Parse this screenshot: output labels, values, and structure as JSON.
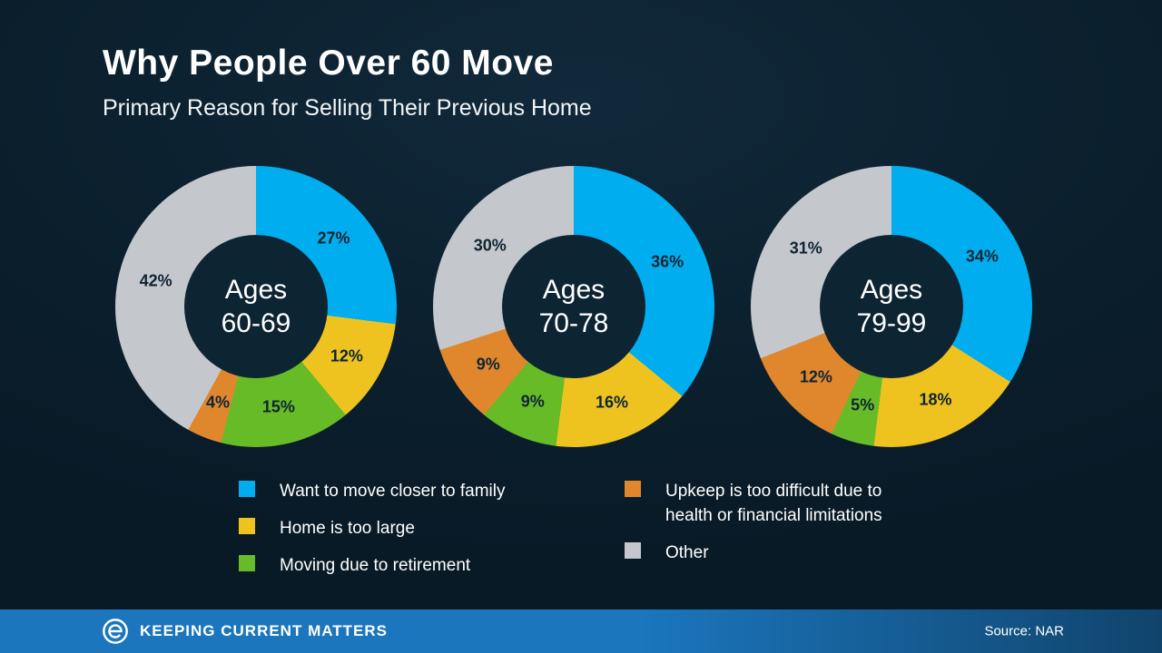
{
  "title": "Why People Over 60 Move",
  "subtitle": "Primary Reason for Selling Their Previous Home",
  "chart_data": {
    "type": "pie",
    "style": "donut",
    "categories": [
      "Want to move closer to family",
      "Home is too large",
      "Moving due to retirement",
      "Upkeep is too difficult due to health or financial limitations",
      "Other"
    ],
    "colors": [
      "#00aeef",
      "#efc31f",
      "#66bb27",
      "#e0872e",
      "#c4c8cc"
    ],
    "charts": [
      {
        "name": "Ages 60-69",
        "label_line1": "Ages",
        "label_line2": "60-69",
        "values": [
          27,
          12,
          15,
          4,
          42
        ]
      },
      {
        "name": "Ages 70-78",
        "label_line1": "Ages",
        "label_line2": "70-78",
        "values": [
          36,
          16,
          9,
          9,
          30
        ]
      },
      {
        "name": "Ages 79-99",
        "label_line1": "Ages",
        "label_line2": "79-99",
        "values": [
          34,
          18,
          5,
          12,
          31
        ]
      }
    ],
    "value_suffix": "%",
    "legend_position": "bottom"
  },
  "legend": {
    "items": [
      {
        "label": "Want to move closer to family",
        "color": "#00aeef"
      },
      {
        "label": "Home is too large",
        "color": "#efc31f"
      },
      {
        "label": "Moving due to retirement",
        "color": "#66bb27"
      },
      {
        "label": "Upkeep is too difficult due to\nhealth or financial limitations",
        "color": "#e0872e"
      },
      {
        "label": "Other",
        "color": "#c4c8cc"
      }
    ]
  },
  "footer": {
    "brand": "KEEPING CURRENT MATTERS",
    "source": "Source: NAR"
  }
}
